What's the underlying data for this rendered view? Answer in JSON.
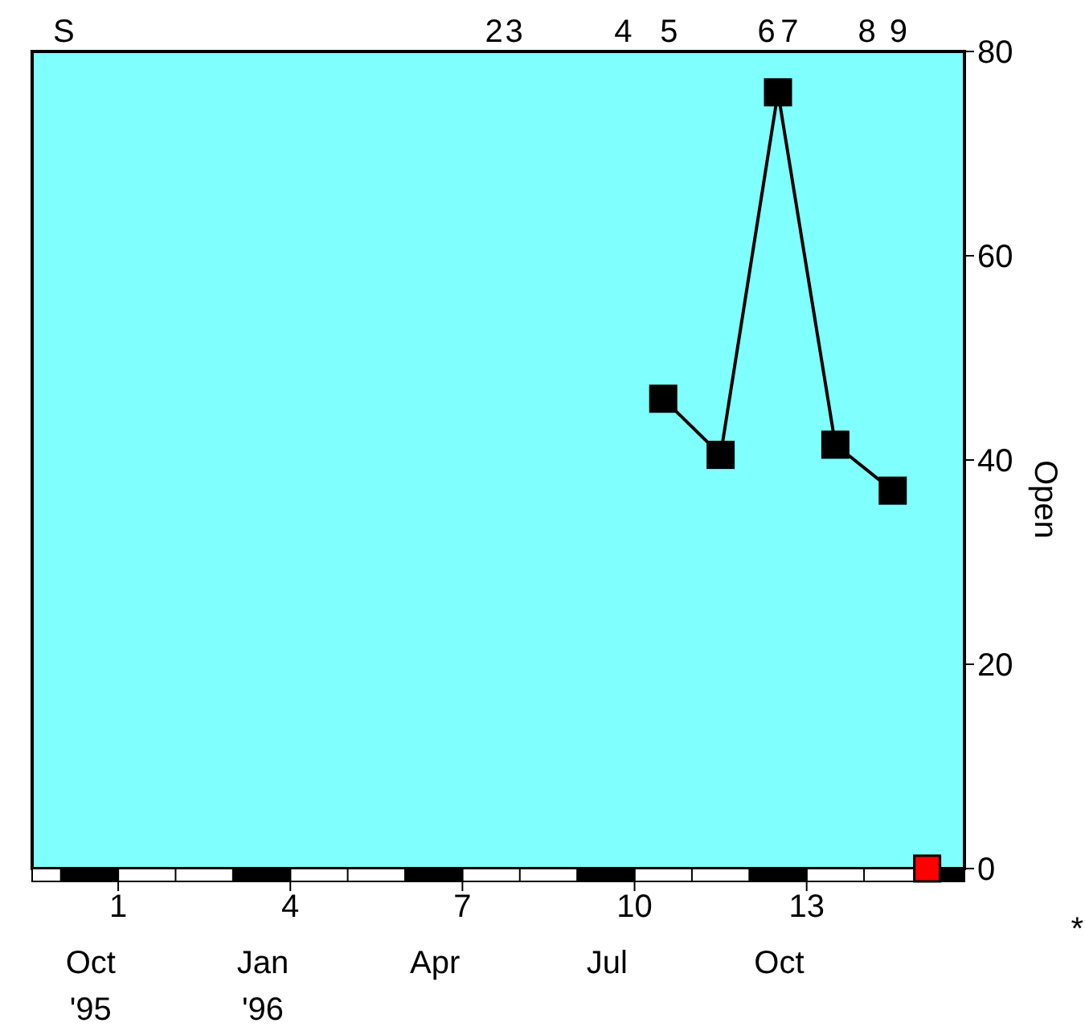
{
  "chart_data": {
    "type": "line",
    "ylabel": "Open",
    "x": [
      10.5,
      11.5,
      12.5,
      13.5,
      14.5
    ],
    "series": [
      {
        "color": "#000000",
        "values": [
          46,
          40.5,
          76,
          41.5,
          37
        ]
      },
      {
        "type": "scatter",
        "color": "#ff0000",
        "x": [
          15.1
        ],
        "values": [
          0
        ]
      }
    ],
    "xlim": [
      -0.5,
      15.75
    ],
    "xticks": [
      1,
      4,
      7,
      10,
      13
    ],
    "ylim": [
      0,
      80
    ],
    "yticks": [
      0,
      20,
      40,
      60,
      80
    ],
    "marker": "square",
    "annotations": [
      "Oct\n'95",
      "Jan\n'96",
      "Apr",
      "Jul",
      "Oct",
      "S",
      "2",
      "3",
      "4",
      "5",
      "6",
      "7",
      "8",
      "9",
      "*"
    ]
  }
}
